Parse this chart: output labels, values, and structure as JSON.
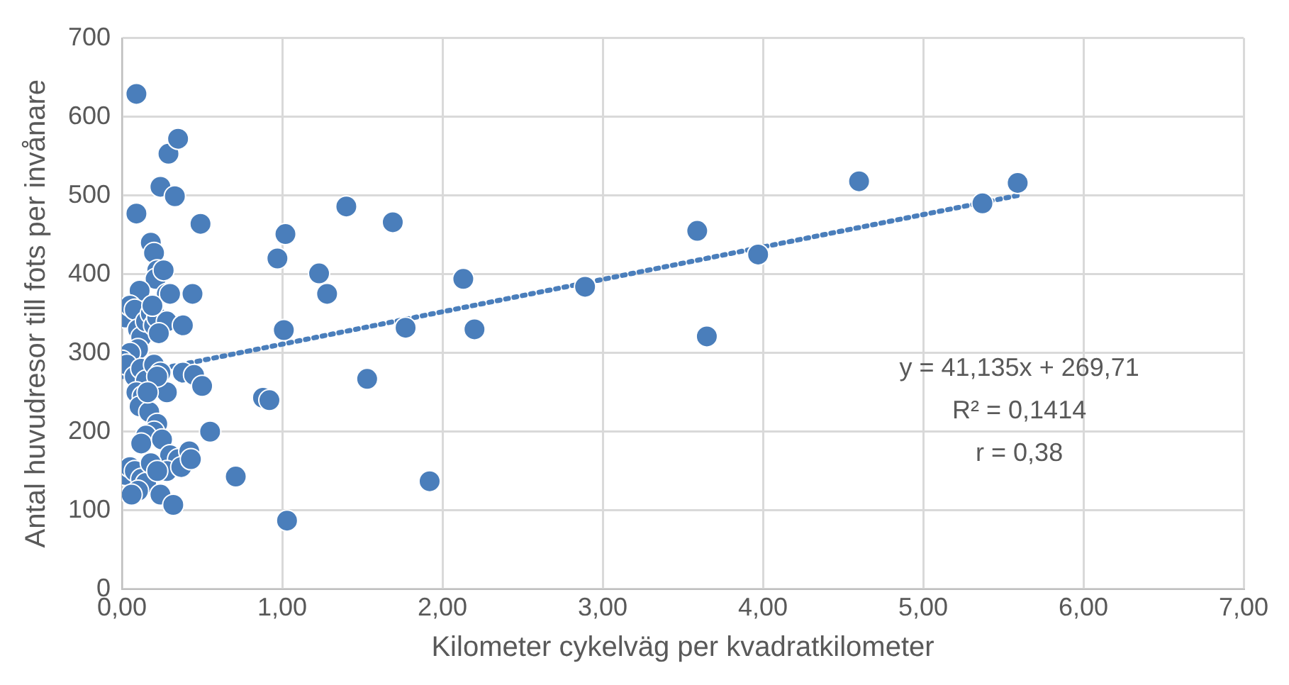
{
  "chart_data": {
    "type": "scatter",
    "xlabel": "Kilometer cykelväg per kvadratkilometer",
    "ylabel": "Antal huvudresor till fots per invånare",
    "xlim": [
      0,
      7
    ],
    "xticks": [
      {
        "value": 0,
        "label": "0,00"
      },
      {
        "value": 1,
        "label": "1,00"
      },
      {
        "value": 2,
        "label": "2,00"
      },
      {
        "value": 3,
        "label": "3,00"
      },
      {
        "value": 4,
        "label": "4,00"
      },
      {
        "value": 5,
        "label": "5,00"
      },
      {
        "value": 6,
        "label": "6,00"
      },
      {
        "value": 7,
        "label": "7,00"
      }
    ],
    "ylim": [
      0,
      700
    ],
    "yticks": [
      0,
      100,
      200,
      300,
      400,
      500,
      600,
      700
    ],
    "grid": true,
    "legend": false,
    "marker": "circle",
    "annotations": [
      "y = 41,135x + 269,71",
      "R² = 0,1414",
      "r = 0,38"
    ],
    "series": [
      {
        "type": "scatter",
        "color": "#4a7ebb",
        "x": [
          0.09,
          0.29,
          0.35,
          0.24,
          0.33,
          0.09,
          0.49,
          0.18,
          0.2,
          0.22,
          0.21,
          0.28,
          0.44,
          0.11,
          0.88,
          0.92,
          0.71,
          1.03,
          0.97,
          1.02,
          1.01,
          1.4,
          1.23,
          1.28,
          1.69,
          1.77,
          1.53,
          1.92,
          2.13,
          2.2,
          2.89,
          3.59,
          3.65,
          3.97,
          4.6,
          5.37,
          5.59,
          0.02,
          0.05,
          0.08,
          0.1,
          0.12,
          0.15,
          0.18,
          0.2,
          0.22,
          0.28,
          0.3,
          0.19,
          0.23,
          0.1,
          0.05,
          0.0,
          0.03,
          0.08,
          0.12,
          0.15,
          0.2,
          0.24,
          0.28,
          0.38,
          0.45,
          0.5,
          0.09,
          0.13,
          0.11,
          0.17,
          0.22,
          0.2,
          0.15,
          0.12,
          0.25,
          0.3,
          0.35,
          0.42,
          0.55,
          0.28,
          0.37,
          0.43,
          0.02,
          0.05,
          0.08,
          0.12,
          0.15,
          0.1,
          0.06,
          0.24,
          0.32,
          0.18,
          0.22,
          0.38,
          0.26,
          0.22,
          0.16
        ],
        "values": [
          629,
          553,
          572,
          511,
          499,
          477,
          464,
          440,
          427,
          405,
          394,
          375,
          375,
          379,
          243,
          240,
          143,
          87,
          420,
          451,
          329,
          486,
          401,
          375,
          466,
          332,
          267,
          137,
          394,
          330,
          384,
          455,
          321,
          425,
          518,
          490,
          516,
          345,
          360,
          355,
          330,
          320,
          340,
          350,
          335,
          345,
          340,
          375,
          360,
          325,
          305,
          300,
          290,
          285,
          270,
          280,
          265,
          285,
          275,
          250,
          275,
          272,
          258,
          250,
          245,
          232,
          225,
          210,
          200,
          195,
          185,
          190,
          170,
          165,
          175,
          200,
          150,
          155,
          165,
          145,
          155,
          150,
          140,
          135,
          125,
          120,
          120,
          107,
          160,
          150,
          335,
          405,
          270,
          250
        ]
      },
      {
        "type": "line",
        "color": "#4a7ebb",
        "line_style": "dotted",
        "marker": "none",
        "x": [
          0.0,
          5.59
        ],
        "values": [
          270,
          500
        ]
      }
    ]
  }
}
